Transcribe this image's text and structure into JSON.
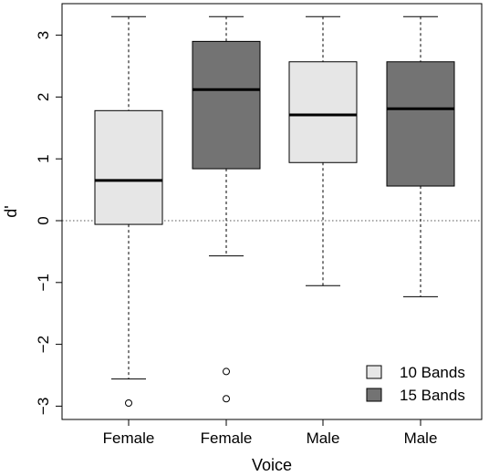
{
  "chart_data": {
    "type": "boxplot",
    "xlabel": "Voice",
    "ylabel": "d'",
    "ylim": [
      -3.2,
      3.4
    ],
    "yticks": [
      -3,
      -2,
      -1,
      0,
      1,
      2,
      3
    ],
    "ytick_labels": [
      "−3",
      "−2",
      "−1",
      "0",
      "1",
      "2",
      "3"
    ],
    "reference_line": 0,
    "grid": false,
    "legend_position": "bottom-right",
    "legend": [
      {
        "label": "10 Bands",
        "color": "#e6e6e6"
      },
      {
        "label": "15 Bands",
        "color": "#737373"
      }
    ],
    "categories": [
      "Female",
      "Female",
      "Male",
      "Male"
    ],
    "boxes": [
      {
        "category": "Female",
        "group": "10 Bands",
        "color": "#e6e6e6",
        "whisker_low": -2.56,
        "q1": -0.06,
        "median": 0.65,
        "q3": 1.78,
        "whisker_high": 3.3,
        "outliers": [
          -2.95
        ]
      },
      {
        "category": "Female",
        "group": "15 Bands",
        "color": "#737373",
        "whisker_low": -0.57,
        "q1": 0.84,
        "median": 2.12,
        "q3": 2.9,
        "whisker_high": 3.3,
        "outliers": [
          -2.44,
          -2.88
        ]
      },
      {
        "category": "Male",
        "group": "10 Bands",
        "color": "#e6e6e6",
        "whisker_low": -1.05,
        "q1": 0.94,
        "median": 1.71,
        "q3": 2.57,
        "whisker_high": 3.3,
        "outliers": []
      },
      {
        "category": "Male",
        "group": "15 Bands",
        "color": "#737373",
        "whisker_low": -1.23,
        "q1": 0.56,
        "median": 1.81,
        "q3": 2.57,
        "whisker_high": 3.3,
        "outliers": []
      }
    ]
  }
}
